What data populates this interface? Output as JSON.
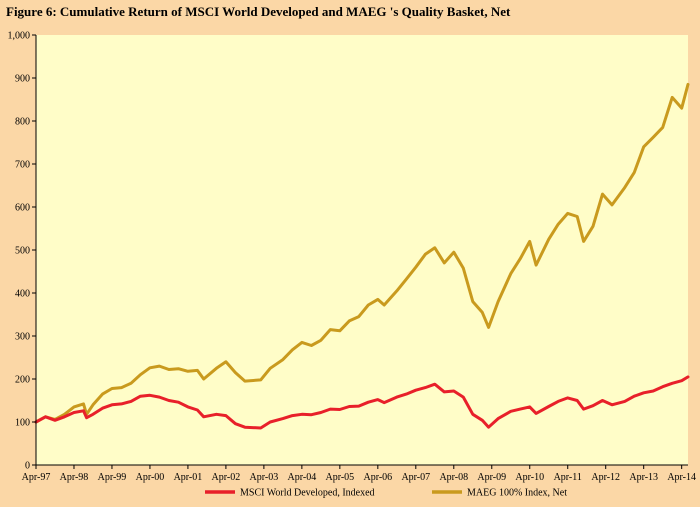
{
  "colors": {
    "page_background": "#FBD7A6",
    "plot_background": "#FFFDC8",
    "msci_series": "#E8202A",
    "maeg_series": "#C99A1E"
  },
  "chart_data": {
    "type": "line",
    "title": "Figure  6: Cumulative  Return  of MSCI World  Developed and  MAEG 's Quality  Basket, Net",
    "xlabel": "",
    "ylabel": "",
    "ylim": [
      0,
      1000
    ],
    "y_ticks": [
      "0",
      "100",
      "200",
      "300",
      "400",
      "500",
      "600",
      "700",
      "800",
      "900",
      "1,000"
    ],
    "x_ticks": [
      "Apr-97",
      "Apr-98",
      "Apr-99",
      "Apr-00",
      "Apr-01",
      "Apr-02",
      "Apr-03",
      "Apr-04",
      "Apr-05",
      "Apr-06",
      "Apr-07",
      "Apr-08",
      "Apr-09",
      "Apr-10",
      "Apr-11",
      "Apr-12",
      "Apr-13",
      "Apr-14"
    ],
    "grid": false,
    "legend_position": "bottom",
    "series": [
      {
        "name": "MSCI World Developed, Indexed",
        "color": "#E8202A",
        "points": [
          [
            "1997-04",
            100
          ],
          [
            "1997-07",
            112
          ],
          [
            "1997-10",
            104
          ],
          [
            "1998-01",
            112
          ],
          [
            "1998-04",
            122
          ],
          [
            "1998-07",
            126
          ],
          [
            "1998-08",
            110
          ],
          [
            "1998-10",
            118
          ],
          [
            "1999-01",
            132
          ],
          [
            "1999-04",
            140
          ],
          [
            "1999-07",
            142
          ],
          [
            "1999-10",
            148
          ],
          [
            "2000-01",
            160
          ],
          [
            "2000-04",
            162
          ],
          [
            "2000-07",
            158
          ],
          [
            "2000-10",
            150
          ],
          [
            "2001-01",
            146
          ],
          [
            "2001-04",
            135
          ],
          [
            "2001-07",
            128
          ],
          [
            "2001-09",
            112
          ],
          [
            "2002-01",
            118
          ],
          [
            "2002-04",
            115
          ],
          [
            "2002-07",
            96
          ],
          [
            "2002-10",
            88
          ],
          [
            "2003-03",
            86
          ],
          [
            "2003-06",
            100
          ],
          [
            "2003-10",
            108
          ],
          [
            "2004-01",
            115
          ],
          [
            "2004-04",
            118
          ],
          [
            "2004-07",
            117
          ],
          [
            "2004-10",
            122
          ],
          [
            "2005-01",
            130
          ],
          [
            "2005-04",
            129
          ],
          [
            "2005-07",
            136
          ],
          [
            "2005-10",
            137
          ],
          [
            "2006-01",
            146
          ],
          [
            "2006-04",
            152
          ],
          [
            "2006-06",
            145
          ],
          [
            "2006-10",
            158
          ],
          [
            "2007-01",
            165
          ],
          [
            "2007-04",
            174
          ],
          [
            "2007-07",
            180
          ],
          [
            "2007-10",
            188
          ],
          [
            "2008-01",
            170
          ],
          [
            "2008-04",
            172
          ],
          [
            "2008-07",
            158
          ],
          [
            "2008-10",
            118
          ],
          [
            "2009-01",
            104
          ],
          [
            "2009-03",
            88
          ],
          [
            "2009-06",
            108
          ],
          [
            "2009-10",
            125
          ],
          [
            "2010-01",
            130
          ],
          [
            "2010-04",
            135
          ],
          [
            "2010-06",
            120
          ],
          [
            "2010-10",
            136
          ],
          [
            "2011-01",
            148
          ],
          [
            "2011-04",
            156
          ],
          [
            "2011-07",
            150
          ],
          [
            "2011-09",
            130
          ],
          [
            "2011-12",
            138
          ],
          [
            "2012-03",
            150
          ],
          [
            "2012-06",
            140
          ],
          [
            "2012-10",
            148
          ],
          [
            "2013-01",
            160
          ],
          [
            "2013-04",
            168
          ],
          [
            "2013-07",
            172
          ],
          [
            "2013-10",
            182
          ],
          [
            "2014-01",
            190
          ],
          [
            "2014-04",
            196
          ],
          [
            "2014-06",
            205
          ]
        ]
      },
      {
        "name": "MAEG 100% Index, Net",
        "color": "#C99A1E",
        "points": [
          [
            "1997-04",
            100
          ],
          [
            "1997-07",
            112
          ],
          [
            "1997-10",
            106
          ],
          [
            "1998-01",
            118
          ],
          [
            "1998-04",
            135
          ],
          [
            "1998-07",
            142
          ],
          [
            "1998-08",
            118
          ],
          [
            "1998-10",
            140
          ],
          [
            "1999-01",
            165
          ],
          [
            "1999-04",
            178
          ],
          [
            "1999-07",
            180
          ],
          [
            "1999-10",
            190
          ],
          [
            "2000-01",
            210
          ],
          [
            "2000-04",
            226
          ],
          [
            "2000-07",
            230
          ],
          [
            "2000-10",
            222
          ],
          [
            "2001-01",
            224
          ],
          [
            "2001-04",
            218
          ],
          [
            "2001-07",
            220
          ],
          [
            "2001-09",
            200
          ],
          [
            "2002-01",
            225
          ],
          [
            "2002-04",
            240
          ],
          [
            "2002-07",
            215
          ],
          [
            "2002-10",
            195
          ],
          [
            "2003-03",
            198
          ],
          [
            "2003-06",
            225
          ],
          [
            "2003-10",
            245
          ],
          [
            "2004-01",
            268
          ],
          [
            "2004-04",
            285
          ],
          [
            "2004-07",
            278
          ],
          [
            "2004-10",
            290
          ],
          [
            "2005-01",
            315
          ],
          [
            "2005-04",
            312
          ],
          [
            "2005-07",
            335
          ],
          [
            "2005-10",
            345
          ],
          [
            "2006-01",
            372
          ],
          [
            "2006-04",
            385
          ],
          [
            "2006-06",
            372
          ],
          [
            "2006-10",
            405
          ],
          [
            "2007-01",
            432
          ],
          [
            "2007-04",
            460
          ],
          [
            "2007-07",
            490
          ],
          [
            "2007-10",
            505
          ],
          [
            "2008-01",
            470
          ],
          [
            "2008-04",
            495
          ],
          [
            "2008-07",
            458
          ],
          [
            "2008-10",
            380
          ],
          [
            "2009-01",
            355
          ],
          [
            "2009-03",
            320
          ],
          [
            "2009-06",
            380
          ],
          [
            "2009-10",
            445
          ],
          [
            "2010-01",
            480
          ],
          [
            "2010-04",
            520
          ],
          [
            "2010-06",
            465
          ],
          [
            "2010-10",
            525
          ],
          [
            "2011-01",
            560
          ],
          [
            "2011-04",
            585
          ],
          [
            "2011-07",
            578
          ],
          [
            "2011-09",
            520
          ],
          [
            "2011-12",
            555
          ],
          [
            "2012-03",
            630
          ],
          [
            "2012-06",
            605
          ],
          [
            "2012-10",
            645
          ],
          [
            "2013-01",
            680
          ],
          [
            "2013-04",
            740
          ],
          [
            "2013-07",
            762
          ],
          [
            "2013-10",
            785
          ],
          [
            "2014-01",
            855
          ],
          [
            "2014-04",
            830
          ],
          [
            "2014-06",
            885
          ]
        ]
      }
    ]
  }
}
